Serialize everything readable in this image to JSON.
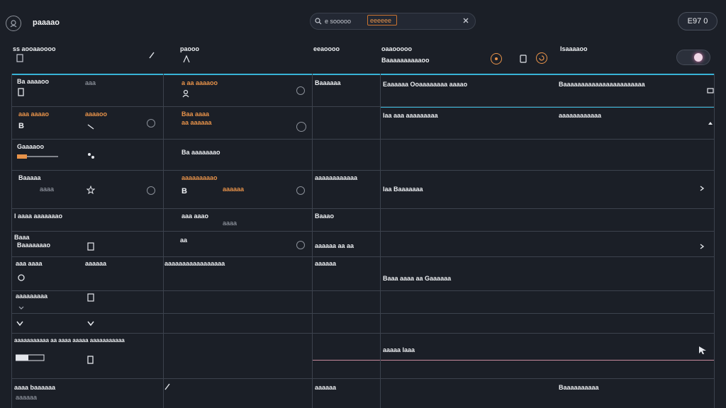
{
  "header": {
    "app_title": "paaaao",
    "search_text": "e sooooo",
    "search_tag": "eeeeee",
    "user_label": "E97 0"
  },
  "columns": {
    "c1": {
      "label": "ss aooaaoooo",
      "sub": ""
    },
    "c2": {
      "label": "paooo",
      "sub": ""
    },
    "c3": {
      "label": "eeaoooo",
      "sub": ""
    },
    "c4": {
      "label": "oaaooooo",
      "sub": "Baaaaaaaaaaoo"
    },
    "c5": {
      "label": "Isaaaaoo",
      "sub": ""
    }
  },
  "rows": [
    {
      "c1a": "Ba aaaaoo",
      "c1b": "aaa",
      "c2": "a aa aaaaoo",
      "c3": "Baaaaaa",
      "c4": "Eaaaaaa  Ooaaaaaaaa aaaao",
      "c5": "Baaaaaaaaaaaaaaaaaaaaaaa"
    },
    {
      "c1a": "aaa aaaao",
      "c1b": "aaaaoo",
      "c2": "Baa aaaa",
      "c2b": "aa aaaaaa",
      "c3": "",
      "c4": "laa aaa aaaaaaaaa",
      "c5": "aaaaaaaaaaaa"
    },
    {
      "c1a": "Gaaaaoo",
      "c2": "Ba aaaaaaao",
      "c3": "",
      "c4": "",
      "c5": ""
    },
    {
      "c1a": "Baaaaa",
      "c1b": "aaaa",
      "c2": "aaaaaaaaao",
      "c2b": "aaaaaa",
      "c3": "aaaaaaaaaaaa",
      "c4": "laa Baaaaaaa",
      "c5": ""
    },
    {
      "c1a": "l aaaa aaaaaaao",
      "c2": "aaa aaao",
      "c2b": "aaaa",
      "c3": "Baaao",
      "c4": "",
      "c5": ""
    },
    {
      "c1a": "Baaa",
      "c1b": "Baaaaaaao",
      "c2": "aa",
      "c3": "aaaaaa  aa  aa",
      "c4": "",
      "c5": ""
    },
    {
      "c1a": "aaa aaaa",
      "c1b": "aaaaaa",
      "c2": "aaaaaaaaaaaaaaaaa",
      "c3": "aaaaaa",
      "c4": "Baaa aaaa aa Gaaaaaa",
      "c5": ""
    },
    {
      "c1a": "aaaaaaaaa",
      "c1b": "",
      "c2": "",
      "c3": "",
      "c4": "",
      "c5": ""
    },
    {
      "c1a": "",
      "c2": "",
      "c3": "",
      "c4": "",
      "c5": ""
    },
    {
      "c1a": "aaaaaaaaaaa aa aaaa  aaaaa aaaaaaaaaaa",
      "c2": "",
      "c3": "",
      "c4": "aaaaa laaa",
      "c5": ""
    },
    {
      "c1a": "aaaa baaaaaa",
      "c1b": "aaaaaa",
      "c2": "",
      "c3": "aaaaaa",
      "c4": "",
      "c5": "Baaaaaaaaaa"
    }
  ],
  "icons": {
    "logo": "app-logo-icon",
    "search": "search-icon",
    "clear": "close-icon",
    "cursor": "cursor-icon"
  },
  "colors": {
    "background": "#1b1f27",
    "accent": "#38b3d6",
    "orange": "#e8934a",
    "grid": "#3c424d"
  }
}
